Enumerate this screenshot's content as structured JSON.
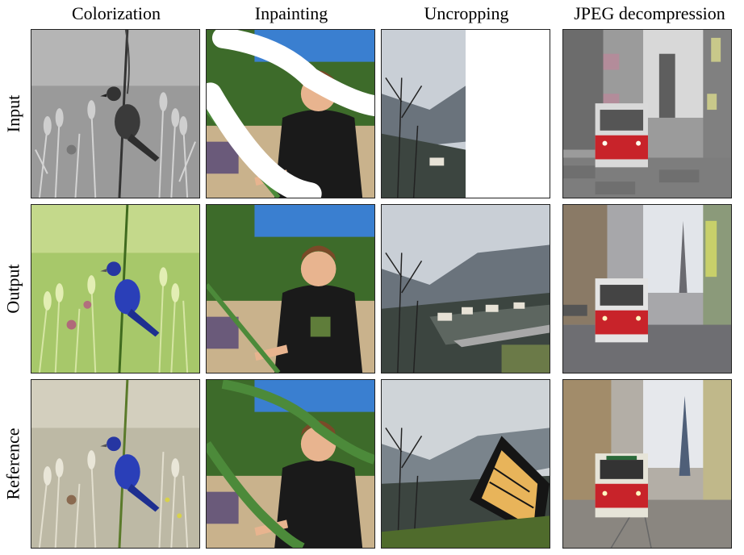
{
  "columns": [
    "Colorization",
    "Inpainting",
    "Uncropping",
    "JPEG decompression"
  ],
  "rows": [
    "Input",
    "Output",
    "Reference"
  ],
  "panels": [
    {
      "task": "colorization",
      "row": "input",
      "image": "grayscale photo of a bird perched on a stem in a wheat field"
    },
    {
      "task": "inpainting",
      "row": "input",
      "image": "boy in black t-shirt with white masked strokes covering parts of the photo"
    },
    {
      "task": "uncropping",
      "row": "input",
      "image": "left half of a mountain valley photo, right half blank white"
    },
    {
      "task": "jpeg",
      "row": "input",
      "image": "blocky compressed photo of a red tram on a city street"
    },
    {
      "task": "colorization",
      "row": "output",
      "image": "colorized blue bird on a stem in a green field"
    },
    {
      "task": "inpainting",
      "row": "output",
      "image": "boy in black t-shirt holding a rope with masked areas filled"
    },
    {
      "task": "uncropping",
      "row": "output",
      "image": "completed mountain valley with village and cloudy sky"
    },
    {
      "task": "jpeg",
      "row": "output",
      "image": "clean photo of red tram on city street"
    },
    {
      "task": "colorization",
      "row": "reference",
      "image": "original photo of blue bird in a pale field"
    },
    {
      "task": "inpainting",
      "row": "reference",
      "image": "original photo of boy holding green rope"
    },
    {
      "task": "uncropping",
      "row": "reference",
      "image": "original mountain valley photo with modern black house"
    },
    {
      "task": "jpeg",
      "row": "reference",
      "image": "original photo of red tram in old town street"
    }
  ],
  "colors": {
    "bird_blue": "#2a3fb8",
    "grass_green": "#8fb04a",
    "tram_red": "#c8232a",
    "sky_blue": "#3a7fd0"
  }
}
